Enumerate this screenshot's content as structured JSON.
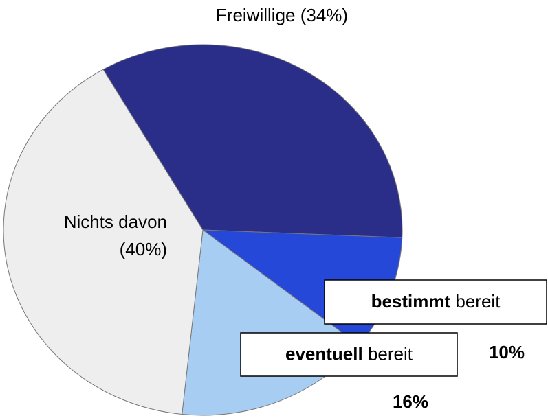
{
  "chart_data": {
    "type": "pie",
    "categories": [
      "Freiwillige",
      "bestimmt bereit",
      "eventuell bereit",
      "Nichts davon"
    ],
    "values": [
      34,
      10,
      16,
      40
    ],
    "value_labels": [
      "(34%)",
      "10%",
      "16%",
      "(40%)"
    ],
    "colors": [
      "#2a2e88",
      "#2648d8",
      "#a8cdf2",
      "#eeeeee"
    ]
  }
}
